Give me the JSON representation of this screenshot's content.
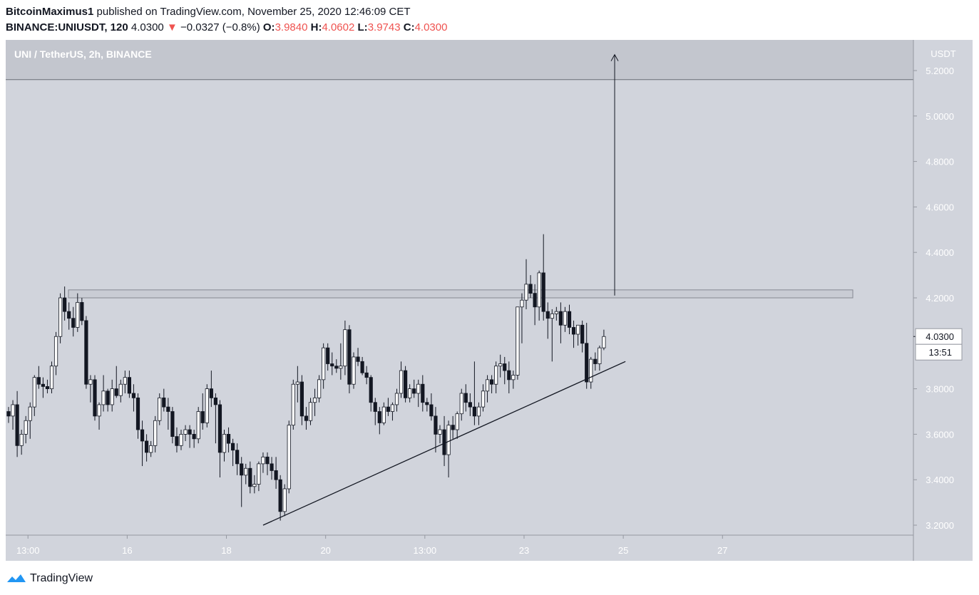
{
  "header": {
    "author": "BitcoinMaximus1",
    "published_text": "published on TradingView.com, November 25, 2020 12:46:09 CET",
    "symbol": "BINANCE:UNIUSDT, 120",
    "last": "4.0300",
    "change_arrow": "▼",
    "change": "−0.0327 (−0.8%)",
    "o_label": "O:",
    "o_value": "3.9840",
    "h_label": "H:",
    "h_value": "4.0602",
    "l_label": "L:",
    "l_value": "3.9743",
    "c_label": "C:",
    "c_value": "4.0300"
  },
  "chart_data": {
    "type": "candlestick",
    "title": "UNI / TetherUS, 2h, BINANCE",
    "currency": "USDT",
    "y_ticks": [
      "5.2000",
      "5.0000",
      "4.8000",
      "4.6000",
      "4.4000",
      "4.2000",
      "3.8000",
      "3.6000",
      "3.4000",
      "3.2000"
    ],
    "y_tick_values": [
      5.2,
      5.0,
      4.8,
      4.6,
      4.4,
      4.2,
      3.8,
      3.6,
      3.4,
      3.2
    ],
    "ylim": [
      3.15,
      5.35
    ],
    "x_ticks": [
      "13:00",
      "16",
      "18",
      "20",
      "13:00",
      "23",
      "25",
      "27"
    ],
    "x_tick_index": [
      4.5,
      27.5,
      50.5,
      73.5,
      96.5,
      119.5,
      142.5,
      165.5
    ],
    "last_price_label": "4.0300",
    "last_price": 4.03,
    "countdown": "13:51",
    "resistance_zone": [
      4.2,
      4.235
    ],
    "target_level": 5.16,
    "arrow": {
      "from_index": 140.5,
      "from_price": 4.21,
      "to_price": 5.27
    },
    "ascending_support": {
      "from_index": 59,
      "from_price": 3.2,
      "to_index": 143,
      "to_price": 3.92
    },
    "candles": [
      [
        3.7,
        3.72,
        3.65,
        3.68
      ],
      [
        3.68,
        3.75,
        3.62,
        3.73
      ],
      [
        3.73,
        3.79,
        3.5,
        3.55
      ],
      [
        3.55,
        3.62,
        3.51,
        3.6
      ],
      [
        3.6,
        3.68,
        3.56,
        3.66
      ],
      [
        3.66,
        3.74,
        3.58,
        3.72
      ],
      [
        3.72,
        3.86,
        3.68,
        3.85
      ],
      [
        3.85,
        3.9,
        3.8,
        3.82
      ],
      [
        3.82,
        3.85,
        3.76,
        3.81
      ],
      [
        3.81,
        3.84,
        3.78,
        3.8
      ],
      [
        3.8,
        3.92,
        3.78,
        3.9
      ],
      [
        3.9,
        4.05,
        3.86,
        4.03
      ],
      [
        4.03,
        4.22,
        4.0,
        4.2
      ],
      [
        4.2,
        4.25,
        4.1,
        4.14
      ],
      [
        4.14,
        4.18,
        4.06,
        4.11
      ],
      [
        4.11,
        4.16,
        4.03,
        4.07
      ],
      [
        4.07,
        4.22,
        4.05,
        4.18
      ],
      [
        4.18,
        4.2,
        4.08,
        4.1
      ],
      [
        4.1,
        4.12,
        3.8,
        3.82
      ],
      [
        3.82,
        3.86,
        3.74,
        3.84
      ],
      [
        3.84,
        3.86,
        3.66,
        3.68
      ],
      [
        3.68,
        3.74,
        3.62,
        3.73
      ],
      [
        3.73,
        3.86,
        3.7,
        3.79
      ],
      [
        3.79,
        3.8,
        3.7,
        3.73
      ],
      [
        3.73,
        3.84,
        3.7,
        3.8
      ],
      [
        3.8,
        3.9,
        3.76,
        3.77
      ],
      [
        3.77,
        3.84,
        3.74,
        3.82
      ],
      [
        3.82,
        3.88,
        3.78,
        3.85
      ],
      [
        3.85,
        3.88,
        3.76,
        3.78
      ],
      [
        3.78,
        3.82,
        3.7,
        3.76
      ],
      [
        3.76,
        3.78,
        3.58,
        3.62
      ],
      [
        3.62,
        3.66,
        3.46,
        3.57
      ],
      [
        3.57,
        3.6,
        3.48,
        3.52
      ],
      [
        3.52,
        3.57,
        3.5,
        3.55
      ],
      [
        3.55,
        3.68,
        3.52,
        3.66
      ],
      [
        3.66,
        3.78,
        3.64,
        3.76
      ],
      [
        3.76,
        3.8,
        3.7,
        3.72
      ],
      [
        3.72,
        3.76,
        3.62,
        3.7
      ],
      [
        3.7,
        3.72,
        3.56,
        3.59
      ],
      [
        3.59,
        3.63,
        3.52,
        3.55
      ],
      [
        3.55,
        3.62,
        3.53,
        3.6
      ],
      [
        3.6,
        3.64,
        3.57,
        3.62
      ],
      [
        3.62,
        3.64,
        3.54,
        3.6
      ],
      [
        3.6,
        3.62,
        3.54,
        3.58
      ],
      [
        3.58,
        3.72,
        3.56,
        3.7
      ],
      [
        3.7,
        3.78,
        3.62,
        3.65
      ],
      [
        3.65,
        3.82,
        3.63,
        3.8
      ],
      [
        3.8,
        3.88,
        3.72,
        3.76
      ],
      [
        3.76,
        3.78,
        3.56,
        3.73
      ],
      [
        3.73,
        3.75,
        3.41,
        3.52
      ],
      [
        3.52,
        3.62,
        3.48,
        3.6
      ],
      [
        3.6,
        3.63,
        3.52,
        3.56
      ],
      [
        3.56,
        3.58,
        3.46,
        3.53
      ],
      [
        3.53,
        3.56,
        3.42,
        3.47
      ],
      [
        3.47,
        3.5,
        3.28,
        3.42
      ],
      [
        3.42,
        3.47,
        3.38,
        3.45
      ],
      [
        3.45,
        3.48,
        3.34,
        3.37
      ],
      [
        3.37,
        3.42,
        3.34,
        3.38
      ],
      [
        3.38,
        3.48,
        3.35,
        3.47
      ],
      [
        3.47,
        3.52,
        3.43,
        3.5
      ],
      [
        3.5,
        3.52,
        3.42,
        3.47
      ],
      [
        3.47,
        3.5,
        3.4,
        3.44
      ],
      [
        3.44,
        3.5,
        3.36,
        3.4
      ],
      [
        3.4,
        3.42,
        3.22,
        3.26
      ],
      [
        3.26,
        3.38,
        3.24,
        3.36
      ],
      [
        3.36,
        3.66,
        3.34,
        3.64
      ],
      [
        3.64,
        3.84,
        3.62,
        3.82
      ],
      [
        3.82,
        3.9,
        3.74,
        3.83
      ],
      [
        3.83,
        3.86,
        3.64,
        3.68
      ],
      [
        3.68,
        3.72,
        3.62,
        3.66
      ],
      [
        3.66,
        3.76,
        3.64,
        3.74
      ],
      [
        3.74,
        3.8,
        3.68,
        3.76
      ],
      [
        3.76,
        3.86,
        3.74,
        3.84
      ],
      [
        3.84,
        4.0,
        3.8,
        3.98
      ],
      [
        3.98,
        4.0,
        3.88,
        3.91
      ],
      [
        3.91,
        3.96,
        3.86,
        3.9
      ],
      [
        3.9,
        3.93,
        3.87,
        3.89
      ],
      [
        3.89,
        4.0,
        3.84,
        3.9
      ],
      [
        3.9,
        4.1,
        3.86,
        4.06
      ],
      [
        4.06,
        4.08,
        3.78,
        3.82
      ],
      [
        3.82,
        3.96,
        3.8,
        3.94
      ],
      [
        3.94,
        3.98,
        3.9,
        3.92
      ],
      [
        3.92,
        3.94,
        3.86,
        3.87
      ],
      [
        3.87,
        3.9,
        3.82,
        3.85
      ],
      [
        3.85,
        3.86,
        3.7,
        3.74
      ],
      [
        3.74,
        3.76,
        3.64,
        3.7
      ],
      [
        3.7,
        3.72,
        3.6,
        3.65
      ],
      [
        3.65,
        3.74,
        3.64,
        3.72
      ],
      [
        3.72,
        3.76,
        3.68,
        3.7
      ],
      [
        3.7,
        3.74,
        3.66,
        3.73
      ],
      [
        3.73,
        3.8,
        3.7,
        3.78
      ],
      [
        3.78,
        3.92,
        3.76,
        3.88
      ],
      [
        3.88,
        3.9,
        3.74,
        3.76
      ],
      [
        3.76,
        3.82,
        3.74,
        3.8
      ],
      [
        3.8,
        3.84,
        3.76,
        3.78
      ],
      [
        3.78,
        3.84,
        3.72,
        3.82
      ],
      [
        3.82,
        3.86,
        3.7,
        3.74
      ],
      [
        3.74,
        3.76,
        3.7,
        3.73
      ],
      [
        3.73,
        3.78,
        3.66,
        3.68
      ],
      [
        3.68,
        3.72,
        3.52,
        3.6
      ],
      [
        3.6,
        3.64,
        3.56,
        3.62
      ],
      [
        3.62,
        3.68,
        3.46,
        3.51
      ],
      [
        3.51,
        3.66,
        3.41,
        3.64
      ],
      [
        3.64,
        3.68,
        3.58,
        3.62
      ],
      [
        3.62,
        3.7,
        3.58,
        3.69
      ],
      [
        3.69,
        3.8,
        3.66,
        3.78
      ],
      [
        3.78,
        3.82,
        3.7,
        3.74
      ],
      [
        3.74,
        3.78,
        3.68,
        3.72
      ],
      [
        3.72,
        3.92,
        3.64,
        3.68
      ],
      [
        3.68,
        3.74,
        3.64,
        3.72
      ],
      [
        3.72,
        3.82,
        3.7,
        3.79
      ],
      [
        3.79,
        3.86,
        3.74,
        3.84
      ],
      [
        3.84,
        3.86,
        3.78,
        3.82
      ],
      [
        3.82,
        3.92,
        3.78,
        3.9
      ],
      [
        3.9,
        3.95,
        3.85,
        3.91
      ],
      [
        3.91,
        3.94,
        3.82,
        3.88
      ],
      [
        3.88,
        3.92,
        3.78,
        3.84
      ],
      [
        3.84,
        3.88,
        3.8,
        3.86
      ],
      [
        3.86,
        4.16,
        3.84,
        4.16
      ],
      [
        4.16,
        4.22,
        4.0,
        4.19
      ],
      [
        4.19,
        4.37,
        4.15,
        4.26
      ],
      [
        4.26,
        4.3,
        4.2,
        4.22
      ],
      [
        4.22,
        4.26,
        4.08,
        4.16
      ],
      [
        4.16,
        4.32,
        4.1,
        4.31
      ],
      [
        4.31,
        4.48,
        4.1,
        4.14
      ],
      [
        4.14,
        4.18,
        4.02,
        4.11
      ],
      [
        4.11,
        4.15,
        3.92,
        4.13
      ],
      [
        4.13,
        4.16,
        4.1,
        4.14
      ],
      [
        4.14,
        4.18,
        4.0,
        4.08
      ],
      [
        4.08,
        4.16,
        4.05,
        4.14
      ],
      [
        4.14,
        4.17,
        4.04,
        4.07
      ],
      [
        4.07,
        4.1,
        3.98,
        4.04
      ],
      [
        4.04,
        4.08,
        3.99,
        4.08
      ],
      [
        4.08,
        4.1,
        3.96,
        4.0
      ],
      [
        4.0,
        4.09,
        3.8,
        3.83
      ],
      [
        3.83,
        3.94,
        3.8,
        3.93
      ],
      [
        3.93,
        3.96,
        3.88,
        3.91
      ],
      [
        3.91,
        3.99,
        3.88,
        3.98
      ],
      [
        3.98,
        4.06,
        3.97,
        4.03
      ]
    ]
  }
}
